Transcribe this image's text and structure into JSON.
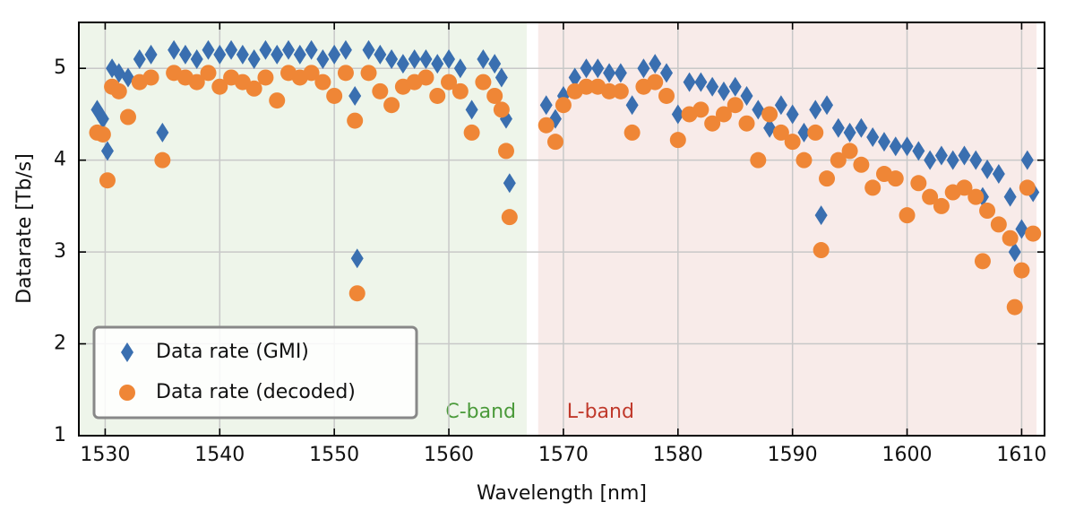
{
  "chart_data": {
    "type": "scatter",
    "x_label": "Wavelength [nm]",
    "y_label": "Datarate [Tb/s]",
    "xlim": [
      1527.7,
      1612.0
    ],
    "ylim": [
      1,
      5.5
    ],
    "xticks": [
      1530,
      1540,
      1550,
      1560,
      1570,
      1580,
      1590,
      1600,
      1610
    ],
    "yticks": [
      1,
      2,
      3,
      4,
      5
    ],
    "grid": true,
    "legend": "lower left",
    "bands": [
      {
        "label": "C-band",
        "range": [
          1527.7,
          1566.8
        ],
        "color": "#eef5ea",
        "label_color": "#4a9a3a"
      },
      {
        "label": "L-band",
        "range": [
          1567.8,
          1611.3
        ],
        "color": "#f8ebe9",
        "label_color": "#c0392b"
      }
    ],
    "x": [
      1529.3,
      1529.8,
      1530.2,
      1530.6,
      1531.2,
      1532,
      1533,
      1534,
      1535,
      1536,
      1537,
      1538,
      1539,
      1540,
      1541,
      1542,
      1543,
      1544,
      1545,
      1546,
      1547,
      1548,
      1549,
      1550,
      1551,
      1551.8,
      1552,
      1553,
      1554,
      1555,
      1556,
      1557,
      1558,
      1559,
      1560,
      1561,
      1562,
      1563,
      1564,
      1564.6,
      1565,
      1565.3,
      1568.5,
      1569.3,
      1570,
      1571,
      1572,
      1573,
      1574,
      1575,
      1576,
      1577,
      1578,
      1579,
      1580,
      1581,
      1582,
      1583,
      1584,
      1585,
      1586,
      1587,
      1588,
      1589,
      1590,
      1591,
      1592,
      1592.5,
      1593,
      1594,
      1595,
      1596,
      1597,
      1598,
      1599,
      1600,
      1601,
      1602,
      1603,
      1604,
      1605,
      1606,
      1606.6,
      1607,
      1608,
      1609,
      1609.4,
      1610,
      1610.5,
      1611
    ],
    "series": [
      {
        "name": "Data rate (GMI)",
        "color": "#3a6fb0",
        "marker": "diamond",
        "values": [
          4.55,
          4.45,
          4.1,
          5.0,
          4.95,
          4.9,
          5.1,
          5.15,
          4.3,
          5.2,
          5.15,
          5.1,
          5.2,
          5.15,
          5.2,
          5.15,
          5.1,
          5.2,
          5.15,
          5.2,
          5.15,
          5.2,
          5.1,
          5.15,
          5.2,
          4.7,
          2.93,
          5.2,
          5.15,
          5.1,
          5.05,
          5.1,
          5.1,
          5.05,
          5.1,
          5.0,
          4.55,
          5.1,
          5.05,
          4.9,
          4.45,
          3.75,
          4.6,
          4.45,
          4.7,
          4.9,
          5.0,
          5.0,
          4.95,
          4.95,
          4.6,
          5.0,
          5.05,
          4.95,
          4.5,
          4.85,
          4.85,
          4.8,
          4.75,
          4.8,
          4.7,
          4.55,
          4.35,
          4.6,
          4.5,
          4.3,
          4.55,
          3.4,
          4.6,
          4.35,
          4.3,
          4.35,
          4.25,
          4.2,
          4.15,
          4.15,
          4.1,
          4.0,
          4.05,
          4.0,
          4.05,
          4.0,
          3.6,
          3.9,
          3.85,
          3.6,
          3.0,
          3.25,
          4.0,
          3.65
        ]
      },
      {
        "name": "Data rate (decoded)",
        "color": "#ef8636",
        "marker": "circle",
        "values": [
          4.3,
          4.28,
          3.78,
          4.8,
          4.75,
          4.47,
          4.85,
          4.9,
          4.0,
          4.95,
          4.9,
          4.85,
          4.95,
          4.8,
          4.9,
          4.85,
          4.78,
          4.9,
          4.65,
          4.95,
          4.9,
          4.95,
          4.85,
          4.7,
          4.95,
          4.43,
          2.55,
          4.95,
          4.75,
          4.6,
          4.8,
          4.85,
          4.9,
          4.7,
          4.85,
          4.75,
          4.3,
          4.85,
          4.7,
          4.55,
          4.1,
          3.38,
          4.38,
          4.2,
          4.6,
          4.75,
          4.8,
          4.8,
          4.75,
          4.75,
          4.3,
          4.8,
          4.85,
          4.7,
          4.22,
          4.5,
          4.55,
          4.4,
          4.5,
          4.6,
          4.4,
          4.0,
          4.5,
          4.3,
          4.2,
          4.0,
          4.3,
          3.02,
          3.8,
          4.0,
          4.1,
          3.95,
          3.7,
          3.85,
          3.8,
          3.4,
          3.75,
          3.6,
          3.5,
          3.65,
          3.7,
          3.6,
          2.9,
          3.45,
          3.3,
          3.15,
          2.4,
          2.8,
          3.7,
          3.2
        ]
      }
    ]
  }
}
